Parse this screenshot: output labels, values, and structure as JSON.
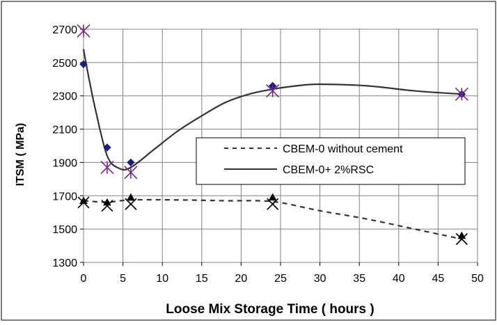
{
  "chart_data": {
    "type": "line",
    "xlabel": "Loose Mix Storage Time ( hours )",
    "ylabel": "ITSM ( MPa)",
    "xlim": [
      0,
      50
    ],
    "ylim": [
      1300,
      2700
    ],
    "x_ticks": [
      0,
      5,
      10,
      15,
      20,
      25,
      30,
      35,
      40,
      45,
      50
    ],
    "y_ticks": [
      1300,
      1500,
      1700,
      1900,
      2100,
      2300,
      2500,
      2700
    ],
    "grid": true,
    "legend_position": "right-center",
    "series": [
      {
        "name": "CBEM-0 without cement",
        "line_style": "dashed",
        "color": "#333333",
        "curve": [
          [
            0,
            1670
          ],
          [
            3,
            1662
          ],
          [
            6,
            1675
          ],
          [
            12,
            1675
          ],
          [
            18,
            1670
          ],
          [
            24,
            1665
          ],
          [
            30,
            1610
          ],
          [
            36,
            1560
          ],
          [
            42,
            1500
          ],
          [
            48,
            1440
          ]
        ],
        "points_diamond": [
          [
            0,
            1670
          ],
          [
            3,
            1660
          ],
          [
            6,
            1690
          ],
          [
            24,
            1690
          ],
          [
            48,
            1460
          ]
        ],
        "points_x": [
          [
            0,
            1660
          ],
          [
            3,
            1640
          ],
          [
            6,
            1650
          ],
          [
            24,
            1650
          ],
          [
            48,
            1440
          ]
        ],
        "marker_color": "#000000"
      },
      {
        "name": "CBEM-0+ 2%RSC",
        "line_style": "solid",
        "color": "#333333",
        "curve": [
          [
            0,
            2580
          ],
          [
            0.5,
            2450
          ],
          [
            1.5,
            2220
          ],
          [
            3,
            1940
          ],
          [
            4.5,
            1865
          ],
          [
            6,
            1870
          ],
          [
            9,
            1980
          ],
          [
            12,
            2090
          ],
          [
            15,
            2180
          ],
          [
            18,
            2260
          ],
          [
            21,
            2310
          ],
          [
            24,
            2340
          ],
          [
            27,
            2360
          ],
          [
            30,
            2370
          ],
          [
            36,
            2360
          ],
          [
            42,
            2330
          ],
          [
            48,
            2310
          ]
        ],
        "points_diamond": [
          [
            0,
            2490
          ],
          [
            3,
            1990
          ],
          [
            6,
            1900
          ],
          [
            24,
            2360
          ],
          [
            48,
            2310
          ]
        ],
        "points_star": [
          [
            0,
            2690
          ],
          [
            3,
            1870
          ],
          [
            6,
            1840
          ],
          [
            24,
            2330
          ],
          [
            48,
            2310
          ]
        ],
        "diamond_color": "#1a1a8c",
        "star_color": "#7a1f8c"
      }
    ]
  }
}
